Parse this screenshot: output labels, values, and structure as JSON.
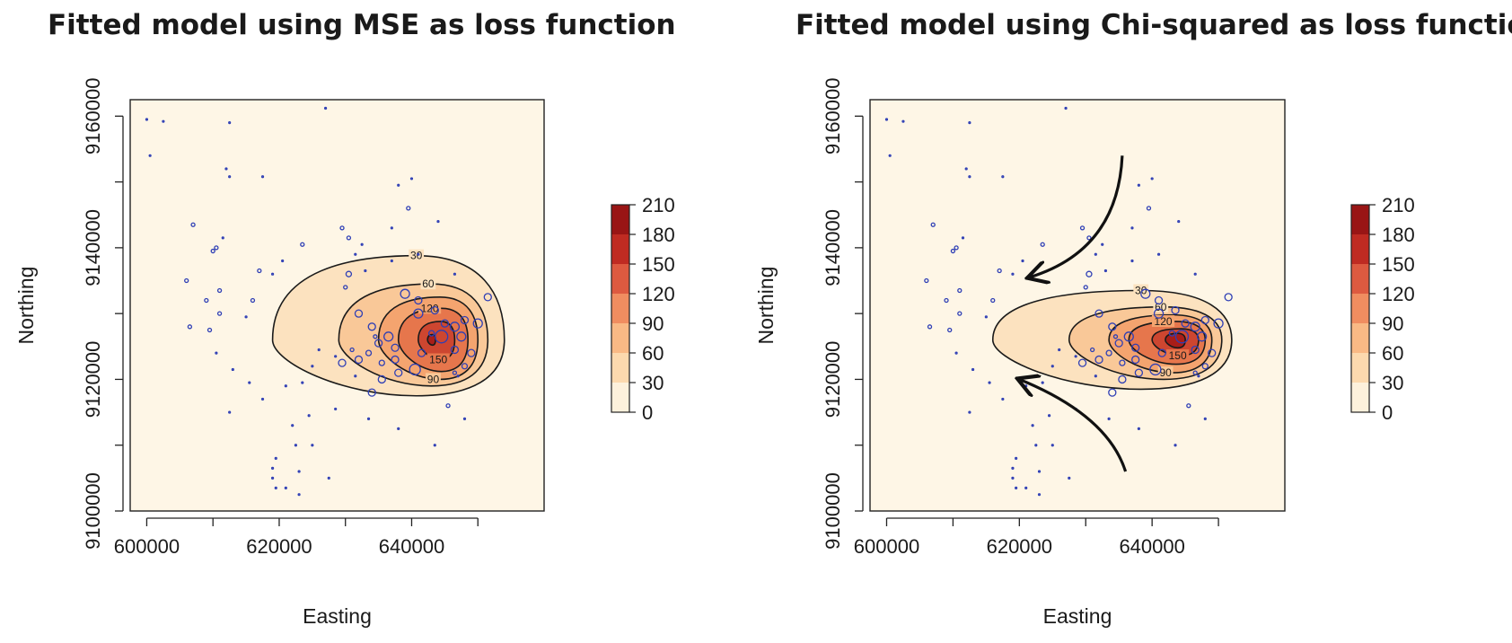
{
  "chart_data": [
    {
      "type": "heatmap",
      "title": "Fitted model using MSE as loss function",
      "xlabel": "Easting",
      "ylabel": "Northing",
      "xlim": [
        597500,
        660000
      ],
      "ylim": [
        9100000,
        9162500
      ],
      "x_ticks": [
        "600000",
        "620000",
        "640000"
      ],
      "y_ticks": [
        "9100000",
        "9120000",
        "9140000",
        "9160000"
      ],
      "peak": {
        "x": 643000,
        "y": 9126000
      },
      "contours": [
        {
          "level": 30,
          "label": "30",
          "x0": 619000,
          "x1": 654000,
          "y_top": 9138800,
          "y_bottom": 9117500
        },
        {
          "level": 60,
          "label": "60",
          "x0": 629000,
          "x1": 651500,
          "y_top": 9134500,
          "y_bottom": 9119000
        },
        {
          "level": 90,
          "label": "90",
          "x0": 635000,
          "x1": 650000,
          "y_top": 9132500,
          "y_bottom": 9120000
        },
        {
          "level": 120,
          "label": "120",
          "x0": 638000,
          "x1": 648500,
          "y_top": 9130800,
          "y_bottom": 9121200
        },
        {
          "level": 150,
          "label": "150",
          "x0": 641000,
          "x1": 646500,
          "y_top": 9128800,
          "y_bottom": 9123000
        },
        {
          "level": 180,
          "label": "",
          "x0": 642400,
          "x1": 643600,
          "y_top": 9126800,
          "y_bottom": 9125200
        }
      ],
      "points": [
        [
          600000,
          9159500,
          1
        ],
        [
          602500,
          9159200,
          1
        ],
        [
          600500,
          9154000,
          1
        ],
        [
          612500,
          9159000,
          1
        ],
        [
          627000,
          9161200,
          1
        ],
        [
          612000,
          9152000,
          1
        ],
        [
          612500,
          9150800,
          1
        ],
        [
          617500,
          9150800,
          1
        ],
        [
          638000,
          9149500,
          1
        ],
        [
          640000,
          9150500,
          1
        ],
        [
          639500,
          9146000,
          2
        ],
        [
          607000,
          9143500,
          2
        ],
        [
          610000,
          9139500,
          2
        ],
        [
          610500,
          9140000,
          2
        ],
        [
          611500,
          9141500,
          1
        ],
        [
          606000,
          9135000,
          2
        ],
        [
          611000,
          9133500,
          2
        ],
        [
          609000,
          9132000,
          2
        ],
        [
          611000,
          9130000,
          2
        ],
        [
          606500,
          9128000,
          2
        ],
        [
          609500,
          9127500,
          2
        ],
        [
          615000,
          9129500,
          1
        ],
        [
          616000,
          9132000,
          2
        ],
        [
          617000,
          9136500,
          2
        ],
        [
          623500,
          9140500,
          2
        ],
        [
          629500,
          9143000,
          2
        ],
        [
          630500,
          9141500,
          2
        ],
        [
          631500,
          9139000,
          1
        ],
        [
          632500,
          9140500,
          1
        ],
        [
          637000,
          9143000,
          1
        ],
        [
          644000,
          9144000,
          1
        ],
        [
          630500,
          9136000,
          3
        ],
        [
          633000,
          9136500,
          1
        ],
        [
          637000,
          9138000,
          1
        ],
        [
          641000,
          9139000,
          1
        ],
        [
          630000,
          9134000,
          2
        ],
        [
          620500,
          9138000,
          1
        ],
        [
          619000,
          9136000,
          1
        ],
        [
          646500,
          9136000,
          1
        ],
        [
          632000,
          9130000,
          4
        ],
        [
          634000,
          9128000,
          4
        ],
        [
          631000,
          9124500,
          2
        ],
        [
          633500,
          9124000,
          3
        ],
        [
          635000,
          9125500,
          4
        ],
        [
          636500,
          9126500,
          5
        ],
        [
          637500,
          9124800,
          4
        ],
        [
          634500,
          9126500,
          2
        ],
        [
          629500,
          9122500,
          4
        ],
        [
          632000,
          9123000,
          4
        ],
        [
          635500,
          9122500,
          3
        ],
        [
          637500,
          9123000,
          4
        ],
        [
          638000,
          9121000,
          4
        ],
        [
          635500,
          9120000,
          4
        ],
        [
          634000,
          9118000,
          4
        ],
        [
          631500,
          9120500,
          1
        ],
        [
          628500,
          9123500,
          1
        ],
        [
          626000,
          9124500,
          1
        ],
        [
          625000,
          9122000,
          1
        ],
        [
          621000,
          9119000,
          1
        ],
        [
          617500,
          9117000,
          1
        ],
        [
          613000,
          9121500,
          1
        ],
        [
          610500,
          9124000,
          1
        ],
        [
          615500,
          9119500,
          1
        ],
        [
          612500,
          9115000,
          1
        ],
        [
          623500,
          9119500,
          1
        ],
        [
          622000,
          9113000,
          1
        ],
        [
          624500,
          9114500,
          1
        ],
        [
          628500,
          9115500,
          1
        ],
        [
          633500,
          9114000,
          1
        ],
        [
          638000,
          9112500,
          1
        ],
        [
          622500,
          9110000,
          1
        ],
        [
          625000,
          9110000,
          1
        ],
        [
          619500,
          9108000,
          1
        ],
        [
          623000,
          9106000,
          1
        ],
        [
          619000,
          9106500,
          1
        ],
        [
          619000,
          9105000,
          1
        ],
        [
          619500,
          9103500,
          1
        ],
        [
          621000,
          9103500,
          1
        ],
        [
          623000,
          9102500,
          1
        ],
        [
          627500,
          9105000,
          1
        ],
        [
          643500,
          9110000,
          1
        ],
        [
          648000,
          9114000,
          1
        ],
        [
          645500,
          9116000,
          2
        ],
        [
          647000,
          9120500,
          1
        ],
        [
          641000,
          9130000,
          5
        ],
        [
          643500,
          9130500,
          4
        ],
        [
          641000,
          9132000,
          4
        ],
        [
          639000,
          9133000,
          5
        ],
        [
          645000,
          9128500,
          4
        ],
        [
          646500,
          9128000,
          5
        ],
        [
          648000,
          9129000,
          4
        ],
        [
          647500,
          9126500,
          5
        ],
        [
          650000,
          9128500,
          5
        ],
        [
          649000,
          9124000,
          4
        ],
        [
          648000,
          9122000,
          3
        ],
        [
          651500,
          9132500,
          4
        ],
        [
          646500,
          9124500,
          4
        ],
        [
          644500,
          9126500,
          7
        ],
        [
          640500,
          9121500,
          6
        ],
        [
          641500,
          9124000,
          4
        ],
        [
          646500,
          9121000,
          2
        ],
        [
          643000,
          9127000,
          3
        ]
      ]
    },
    {
      "type": "heatmap",
      "title": "Fitted model using Chi-squared as loss function",
      "xlabel": "Easting",
      "ylabel": "Northing",
      "xlim": [
        597500,
        660000
      ],
      "ylim": [
        9100000,
        9162500
      ],
      "x_ticks": [
        "600000",
        "620000",
        "640000"
      ],
      "y_ticks": [
        "9100000",
        "9120000",
        "9140000",
        "9160000"
      ],
      "peak": {
        "x": 643500,
        "y": 9126000
      },
      "contours": [
        {
          "level": 30,
          "label": "30",
          "x0": 616000,
          "x1": 652000,
          "y_top": 9133500,
          "y_bottom": 9118500
        },
        {
          "level": 60,
          "label": "60",
          "x0": 627500,
          "x1": 650500,
          "y_top": 9131000,
          "y_bottom": 9120000
        },
        {
          "level": 90,
          "label": "90",
          "x0": 633500,
          "x1": 649000,
          "y_top": 9129800,
          "y_bottom": 9121000
        },
        {
          "level": 120,
          "label": "120",
          "x0": 636500,
          "x1": 648000,
          "y_top": 9128800,
          "y_bottom": 9122300
        },
        {
          "level": 150,
          "label": "150",
          "x0": 640000,
          "x1": 647000,
          "y_top": 9127700,
          "y_bottom": 9123600
        },
        {
          "level": 180,
          "label": "",
          "x0": 642000,
          "x1": 645000,
          "y_top": 9127000,
          "y_bottom": 9124800
        }
      ],
      "points": [
        [
          600000,
          9159500,
          1
        ],
        [
          602500,
          9159200,
          1
        ],
        [
          600500,
          9154000,
          1
        ],
        [
          612500,
          9159000,
          1
        ],
        [
          627000,
          9161200,
          1
        ],
        [
          612000,
          9152000,
          1
        ],
        [
          612500,
          9150800,
          1
        ],
        [
          617500,
          9150800,
          1
        ],
        [
          638000,
          9149500,
          1
        ],
        [
          640000,
          9150500,
          1
        ],
        [
          639500,
          9146000,
          2
        ],
        [
          607000,
          9143500,
          2
        ],
        [
          610000,
          9139500,
          2
        ],
        [
          610500,
          9140000,
          2
        ],
        [
          611500,
          9141500,
          1
        ],
        [
          606000,
          9135000,
          2
        ],
        [
          611000,
          9133500,
          2
        ],
        [
          609000,
          9132000,
          2
        ],
        [
          611000,
          9130000,
          2
        ],
        [
          606500,
          9128000,
          2
        ],
        [
          609500,
          9127500,
          2
        ],
        [
          615000,
          9129500,
          1
        ],
        [
          616000,
          9132000,
          2
        ],
        [
          617000,
          9136500,
          2
        ],
        [
          623500,
          9140500,
          2
        ],
        [
          629500,
          9143000,
          2
        ],
        [
          630500,
          9141500,
          2
        ],
        [
          631500,
          9139000,
          1
        ],
        [
          632500,
          9140500,
          1
        ],
        [
          637000,
          9143000,
          1
        ],
        [
          644000,
          9144000,
          1
        ],
        [
          630500,
          9136000,
          3
        ],
        [
          633000,
          9136500,
          1
        ],
        [
          637000,
          9138000,
          1
        ],
        [
          641000,
          9139000,
          1
        ],
        [
          630000,
          9134000,
          2
        ],
        [
          620500,
          9138000,
          1
        ],
        [
          619000,
          9136000,
          1
        ],
        [
          646500,
          9136000,
          1
        ],
        [
          632000,
          9130000,
          4
        ],
        [
          634000,
          9128000,
          4
        ],
        [
          631000,
          9124500,
          2
        ],
        [
          633500,
          9124000,
          3
        ],
        [
          635000,
          9125500,
          4
        ],
        [
          636500,
          9126500,
          5
        ],
        [
          637500,
          9124800,
          4
        ],
        [
          634500,
          9126500,
          2
        ],
        [
          629500,
          9122500,
          4
        ],
        [
          632000,
          9123000,
          4
        ],
        [
          635500,
          9122500,
          3
        ],
        [
          637500,
          9123000,
          4
        ],
        [
          638000,
          9121000,
          4
        ],
        [
          635500,
          9120000,
          4
        ],
        [
          634000,
          9118000,
          4
        ],
        [
          631500,
          9120500,
          1
        ],
        [
          628500,
          9123500,
          1
        ],
        [
          626000,
          9124500,
          1
        ],
        [
          625000,
          9122000,
          1
        ],
        [
          621000,
          9119000,
          1
        ],
        [
          617500,
          9117000,
          1
        ],
        [
          613000,
          9121500,
          1
        ],
        [
          610500,
          9124000,
          1
        ],
        [
          615500,
          9119500,
          1
        ],
        [
          612500,
          9115000,
          1
        ],
        [
          623500,
          9119500,
          1
        ],
        [
          622000,
          9113000,
          1
        ],
        [
          624500,
          9114500,
          1
        ],
        [
          628500,
          9115500,
          1
        ],
        [
          633500,
          9114000,
          1
        ],
        [
          638000,
          9112500,
          1
        ],
        [
          622500,
          9110000,
          1
        ],
        [
          625000,
          9110000,
          1
        ],
        [
          619500,
          9108000,
          1
        ],
        [
          623000,
          9106000,
          1
        ],
        [
          619000,
          9106500,
          1
        ],
        [
          619000,
          9105000,
          1
        ],
        [
          619500,
          9103500,
          1
        ],
        [
          621000,
          9103500,
          1
        ],
        [
          623000,
          9102500,
          1
        ],
        [
          627500,
          9105000,
          1
        ],
        [
          643500,
          9110000,
          1
        ],
        [
          648000,
          9114000,
          1
        ],
        [
          645500,
          9116000,
          2
        ],
        [
          647000,
          9120500,
          1
        ],
        [
          641000,
          9130000,
          5
        ],
        [
          643500,
          9130500,
          4
        ],
        [
          641000,
          9132000,
          4
        ],
        [
          639000,
          9133000,
          5
        ],
        [
          645000,
          9128500,
          4
        ],
        [
          646500,
          9128000,
          5
        ],
        [
          648000,
          9129000,
          4
        ],
        [
          647500,
          9126500,
          5
        ],
        [
          650000,
          9128500,
          5
        ],
        [
          649000,
          9124000,
          4
        ],
        [
          648000,
          9122000,
          3
        ],
        [
          651500,
          9132500,
          4
        ],
        [
          646500,
          9124500,
          4
        ],
        [
          644500,
          9126500,
          7
        ],
        [
          640500,
          9121500,
          6
        ],
        [
          641500,
          9124000,
          4
        ],
        [
          646500,
          9121000,
          2
        ],
        [
          643000,
          9127000,
          3
        ]
      ],
      "arrows": [
        {
          "from": [
            635500,
            9154000
          ],
          "to": [
            621500,
            9135500
          ]
        },
        {
          "from": [
            636000,
            9106000
          ],
          "to": [
            620000,
            9120000
          ]
        }
      ]
    }
  ],
  "colorbar": {
    "ticks": [
      "0",
      "30",
      "60",
      "90",
      "120",
      "150",
      "180",
      "210"
    ],
    "colors": [
      "#ffffff",
      "#fdf1dc",
      "#fcd9ae",
      "#f9b985",
      "#f08d60",
      "#dd5a40",
      "#bf2b22",
      "#991515"
    ]
  },
  "colors": {
    "background_fill": "#fef6e6",
    "point_stroke": "#2f3fb5",
    "contour": "#1a1a1a",
    "arrow": "#111111"
  }
}
